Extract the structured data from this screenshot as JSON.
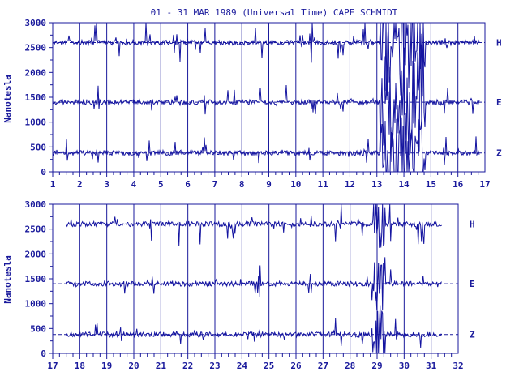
{
  "title": "01 - 31 MAR 1989 (Universal Time) CAPE SCHMIDT",
  "ylabel": "Nanotesla",
  "colors": {
    "ink": "#1a1a9c",
    "trace": "#1414a0",
    "background": "#ffffff"
  },
  "chart_data": [
    {
      "type": "line",
      "panel": "top",
      "x_ticks": [
        "1",
        "2",
        "3",
        "4",
        "5",
        "6",
        "7",
        "8",
        "9",
        "10",
        "11",
        "12",
        "13",
        "14",
        "15",
        "16",
        "17"
      ],
      "xlim": [
        1,
        17
      ],
      "y_ticks": [
        "0",
        "500",
        "1000",
        "1500",
        "2000",
        "2500",
        "3000"
      ],
      "ylim": [
        0,
        3000
      ],
      "grid": "vertical day lines",
      "series": [
        {
          "name": "H",
          "baseline": 2600
        },
        {
          "name": "E",
          "baseline": 1400
        },
        {
          "name": "Z",
          "baseline": 380
        }
      ]
    },
    {
      "type": "line",
      "panel": "bottom",
      "x_ticks": [
        "17",
        "18",
        "19",
        "20",
        "21",
        "22",
        "23",
        "24",
        "25",
        "26",
        "27",
        "28",
        "29",
        "30",
        "31",
        "32"
      ],
      "xlim": [
        17,
        32
      ],
      "y_ticks": [
        "0",
        "500",
        "1000",
        "1500",
        "2000",
        "2500",
        "3000"
      ],
      "ylim": [
        0,
        3000
      ],
      "grid": "vertical day lines",
      "series": [
        {
          "name": "H",
          "baseline": 2600
        },
        {
          "name": "E",
          "baseline": 1400
        },
        {
          "name": "Z",
          "baseline": 380
        }
      ]
    }
  ]
}
